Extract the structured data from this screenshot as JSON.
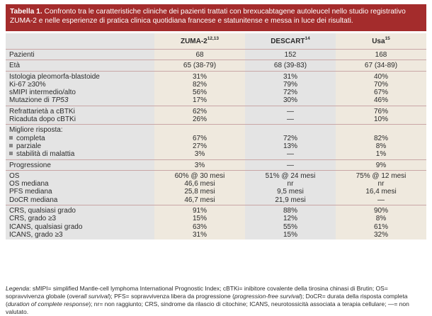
{
  "title": {
    "label": "Tabella 1.",
    "text": "Confronto tra le caratteristiche cliniche dei pazienti trattati con brexucabtagene autoleucel nello studio registrativo ZUMA-2 e nelle esperienze di pratica clinica quotidiana francese e statunitense e messa in luce dei risultati."
  },
  "columns": [
    {
      "name": "ZUMA-2",
      "sup": "12,13"
    },
    {
      "name": "DESCART",
      "sup": "14"
    },
    {
      "name": "Usa",
      "sup": "15"
    }
  ],
  "groups": [
    {
      "rows": [
        {
          "label": "Pazienti",
          "values": [
            "68",
            "152",
            "168"
          ]
        }
      ]
    },
    {
      "rows": [
        {
          "label": "Età",
          "values": [
            "65 (38-79)",
            "68 (39-83)",
            "67 (34-89)"
          ]
        }
      ]
    },
    {
      "rows": [
        {
          "label": "Istologia pleomorfa-blastoide",
          "values": [
            "31%",
            "31%",
            "40%"
          ]
        },
        {
          "label": "Ki-67 ≥30%",
          "values": [
            "82%",
            "79%",
            "70%"
          ]
        },
        {
          "label": "sMIPI intermedio/alto",
          "values": [
            "56%",
            "72%",
            "67%"
          ]
        },
        {
          "label": "Mutazione di ",
          "label_italic": "TP53",
          "values": [
            "17%",
            "30%",
            "46%"
          ]
        }
      ]
    },
    {
      "rows": [
        {
          "label": "Refrattarietà a cBTKi",
          "values": [
            "62%",
            "—",
            "76%"
          ]
        },
        {
          "label": "Ricaduta dopo cBTKi",
          "values": [
            "26%",
            "—",
            "10%"
          ]
        }
      ]
    },
    {
      "rows": [
        {
          "label": "Migliore risposta:",
          "values": [
            "",
            "",
            ""
          ]
        },
        {
          "label": "completa",
          "bullet": true,
          "values": [
            "67%",
            "72%",
            "82%"
          ]
        },
        {
          "label": "parziale",
          "bullet": true,
          "values": [
            "27%",
            "13%",
            "8%"
          ]
        },
        {
          "label": "stabilità di malattia",
          "bullet": true,
          "values": [
            "3%",
            "—",
            "1%"
          ]
        }
      ]
    },
    {
      "rows": [
        {
          "label": "Progressione",
          "values": [
            "3%",
            "—",
            "9%"
          ]
        }
      ]
    },
    {
      "rows": [
        {
          "label": "OS",
          "values": [
            "60% @ 30 mesi",
            "51% @ 24 mesi",
            "75% @ 12 mesi"
          ]
        },
        {
          "label": "OS mediana",
          "values": [
            "46,6 mesi",
            "nr",
            "nr"
          ]
        },
        {
          "label": "PFS mediana",
          "values": [
            "25,8 mesi",
            "9,5 mesi",
            "16,4 mesi"
          ]
        },
        {
          "label": "DoCR mediana",
          "values": [
            "46,7 mesi",
            "21,9 mesi",
            "—"
          ]
        }
      ]
    },
    {
      "rows": [
        {
          "label": "CRS, qualsiasi grado",
          "values": [
            "91%",
            "88%",
            "90%"
          ]
        },
        {
          "label": "CRS, grado ≥3",
          "values": [
            "15%",
            "12%",
            "8%"
          ]
        },
        {
          "label": "ICANS, qualsiasi grado",
          "values": [
            "63%",
            "55%",
            "61%"
          ]
        },
        {
          "label": "ICANS, grado ≥3",
          "values": [
            "31%",
            "15%",
            "32%"
          ]
        }
      ]
    }
  ],
  "legend": {
    "prefix": "Legenda",
    "part1": ": sMIPI= simplified Mantle-cell lymphoma International Prognostic Index; cBTKi= inibitore covalente della tirosina chinasi di Brutin; OS= sopravvivenza globale (",
    "it1": "overall survival",
    "part2": "); PFS= sopravvivenza libera da progressione (",
    "it2": "progression-free survival",
    "part3": "); DoCR= durata della risposta completa (",
    "it3": "duration of complete response",
    "part4": "); nr= non raggiunto; CRS, sindrome da rilascio di citochine; ICANS, neurotossicità associata a terapia cellulare; —= non valutato."
  }
}
